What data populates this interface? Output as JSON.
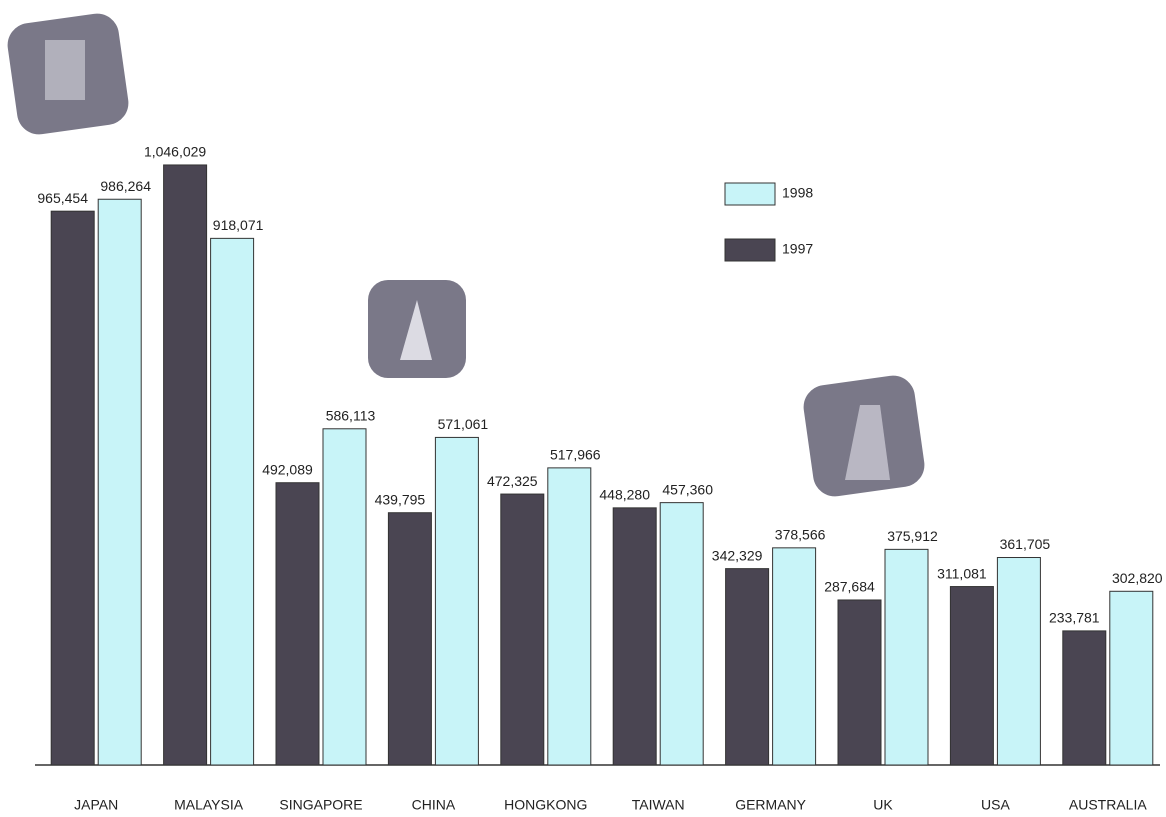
{
  "chart_data": {
    "type": "bar",
    "categories": [
      "JAPAN",
      "MALAYSIA",
      "SINGAPORE",
      "CHINA",
      "HONGKONG",
      "TAIWAN",
      "GERMANY",
      "UK",
      "USA",
      "AUSTRALIA"
    ],
    "series": [
      {
        "name": "1997",
        "color": "#4a4552",
        "values": [
          965454,
          1046029,
          492089,
          439795,
          472325,
          448280,
          342329,
          287684,
          311081,
          233781
        ],
        "value_labels": [
          "965,454",
          "1,046,029",
          "492,089",
          "439,795",
          "472,325",
          "448,280",
          "342,329",
          "287,684",
          "311,081",
          "233,781"
        ]
      },
      {
        "name": "1998",
        "color": "#c8f4f8",
        "values": [
          986264,
          918071,
          586113,
          571061,
          517966,
          457360,
          378566,
          375912,
          361705,
          302820
        ],
        "value_labels": [
          "986,264",
          "918,071",
          "586,113",
          "571,061",
          "517,966",
          "457,360",
          "378,566",
          "375,912",
          "361,705",
          "302,820"
        ]
      }
    ],
    "ylim": [
      0,
      1100000
    ]
  }
}
